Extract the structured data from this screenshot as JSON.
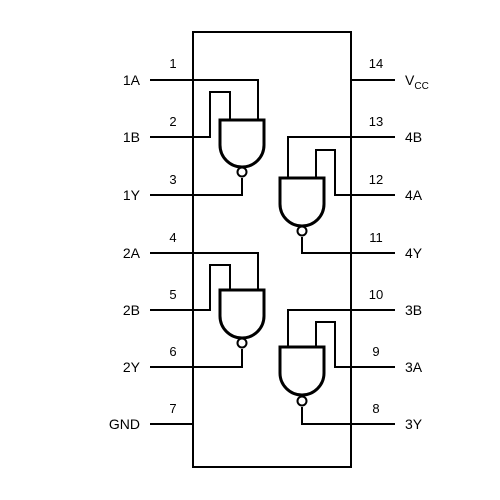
{
  "pins": {
    "p1": {
      "number": "1",
      "label": "1A"
    },
    "p2": {
      "number": "2",
      "label": "1B"
    },
    "p3": {
      "number": "3",
      "label": "1Y"
    },
    "p4": {
      "number": "4",
      "label": "2A"
    },
    "p5": {
      "number": "5",
      "label": "2B"
    },
    "p6": {
      "number": "6",
      "label": "2Y"
    },
    "p7": {
      "number": "7",
      "label": "GND"
    },
    "p8": {
      "number": "8",
      "label": "3Y"
    },
    "p9": {
      "number": "9",
      "label": "3A"
    },
    "p10": {
      "number": "10",
      "label": "3B"
    },
    "p11": {
      "number": "11",
      "label": "4Y"
    },
    "p12": {
      "number": "12",
      "label": "4A"
    },
    "p13": {
      "number": "13",
      "label": "4B"
    },
    "p14": {
      "number": "14",
      "label_main": "V",
      "label_sub": "CC"
    }
  }
}
